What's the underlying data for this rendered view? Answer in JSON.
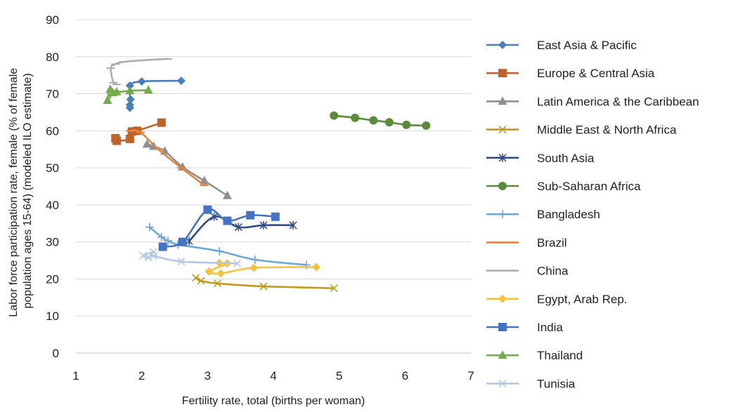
{
  "chart_data": {
    "type": "line",
    "title": "",
    "xlabel": "Fertility rate, total (births per woman)",
    "ylabel_lines": [
      "Labor force participation rate, female (% of female",
      "population ages 15-64) (modeled ILO estimate)"
    ],
    "xlim": [
      1,
      7
    ],
    "ylim": [
      0,
      90
    ],
    "xticks": [
      1,
      2,
      3,
      4,
      5,
      6,
      7
    ],
    "yticks": [
      0,
      10,
      20,
      30,
      40,
      50,
      60,
      70,
      80,
      90
    ],
    "grid": "horizontal",
    "legend_position": "right",
    "series": [
      {
        "name": "East Asia & Pacific",
        "color": "#4a7ebb",
        "marker": "diamond",
        "points": [
          [
            2.6,
            73.5
          ],
          [
            2.0,
            73.3
          ],
          [
            1.82,
            72.2
          ],
          [
            1.83,
            68.5
          ],
          [
            1.82,
            67.0
          ],
          [
            1.82,
            66.2
          ]
        ]
      },
      {
        "name": "Europe & Central Asia",
        "color": "#c0622a",
        "marker": "square",
        "points": [
          [
            2.3,
            62.2
          ],
          [
            1.93,
            60.0
          ],
          [
            1.85,
            59.8
          ],
          [
            1.82,
            57.8
          ],
          [
            1.62,
            57.3
          ],
          [
            1.6,
            58.0
          ]
        ]
      },
      {
        "name": "Latin America & the Caribbean",
        "color": "#8f8f8f",
        "marker": "triangle",
        "points": [
          [
            3.3,
            42.5
          ],
          [
            2.95,
            46.5
          ],
          [
            2.62,
            50.2
          ],
          [
            2.35,
            54.5
          ],
          [
            2.18,
            55.8
          ],
          [
            2.08,
            56.4
          ]
        ]
      },
      {
        "name": "Middle East & North Africa",
        "color": "#c49a1a",
        "marker": "x",
        "points": [
          [
            4.92,
            17.5
          ],
          [
            3.85,
            18.0
          ],
          [
            3.15,
            18.8
          ],
          [
            2.9,
            19.5
          ],
          [
            2.82,
            20.3
          ]
        ]
      },
      {
        "name": "South Asia",
        "color": "#2f4a86",
        "marker": "asterisk",
        "points": [
          [
            4.3,
            34.5
          ],
          [
            3.85,
            34.5
          ],
          [
            3.47,
            34.0
          ],
          [
            3.1,
            36.8
          ],
          [
            2.72,
            30.2
          ]
        ]
      },
      {
        "name": "Sub-Saharan Africa",
        "color": "#5b8a3a",
        "marker": "circle",
        "points": [
          [
            6.32,
            61.4
          ],
          [
            6.02,
            61.6
          ],
          [
            5.76,
            62.3
          ],
          [
            5.52,
            62.8
          ],
          [
            5.24,
            63.5
          ],
          [
            4.92,
            64.1
          ]
        ]
      },
      {
        "name": "Bangladesh",
        "color": "#6ea7d8",
        "marker": "plus",
        "points": [
          [
            4.5,
            23.8
          ],
          [
            3.72,
            25.2
          ],
          [
            3.18,
            27.5
          ],
          [
            2.55,
            29.3
          ],
          [
            2.4,
            30.3
          ],
          [
            2.3,
            31.3
          ],
          [
            2.12,
            34.0
          ]
        ]
      },
      {
        "name": "Brazil",
        "color": "#e5823f",
        "marker": "dash",
        "points": [
          [
            2.95,
            45.3
          ],
          [
            2.6,
            50.0
          ],
          [
            2.25,
            55.0
          ],
          [
            1.98,
            59.6
          ],
          [
            1.82,
            60.0
          ]
        ]
      },
      {
        "name": "China",
        "color": "#adadad",
        "marker": "dash",
        "points": [
          [
            2.4,
            79.4
          ],
          [
            1.98,
            79.0
          ],
          [
            1.72,
            78.6
          ],
          [
            1.6,
            78.0
          ],
          [
            1.53,
            76.9
          ],
          [
            1.57,
            73.0
          ],
          [
            1.62,
            72.5
          ]
        ]
      },
      {
        "name": "Egypt, Arab Rep.",
        "color": "#f5c242",
        "marker": "diamond",
        "points": [
          [
            4.65,
            23.2
          ],
          [
            3.7,
            23.0
          ],
          [
            3.2,
            21.5
          ],
          [
            3.02,
            22.0
          ],
          [
            3.3,
            24.2
          ],
          [
            3.18,
            24.3
          ]
        ]
      },
      {
        "name": "India",
        "color": "#4472c4",
        "marker": "square",
        "points": [
          [
            4.03,
            36.8
          ],
          [
            3.65,
            37.2
          ],
          [
            3.3,
            35.7
          ],
          [
            3.0,
            38.7
          ],
          [
            2.62,
            30.0
          ],
          [
            2.32,
            28.7
          ]
        ]
      },
      {
        "name": "Thailand",
        "color": "#72ac4d",
        "marker": "triangle",
        "points": [
          [
            2.1,
            71.0
          ],
          [
            1.82,
            70.8
          ],
          [
            1.62,
            70.5
          ],
          [
            1.52,
            71.2
          ],
          [
            1.48,
            68.2
          ],
          [
            1.56,
            70.3
          ]
        ]
      },
      {
        "name": "Tunisia",
        "color": "#b4c7e7",
        "marker": "x",
        "points": [
          [
            3.45,
            24.2
          ],
          [
            2.6,
            24.7
          ],
          [
            2.18,
            26.2
          ],
          [
            2.1,
            25.8
          ],
          [
            2.02,
            26.3
          ],
          [
            2.18,
            27.3
          ]
        ]
      }
    ]
  }
}
